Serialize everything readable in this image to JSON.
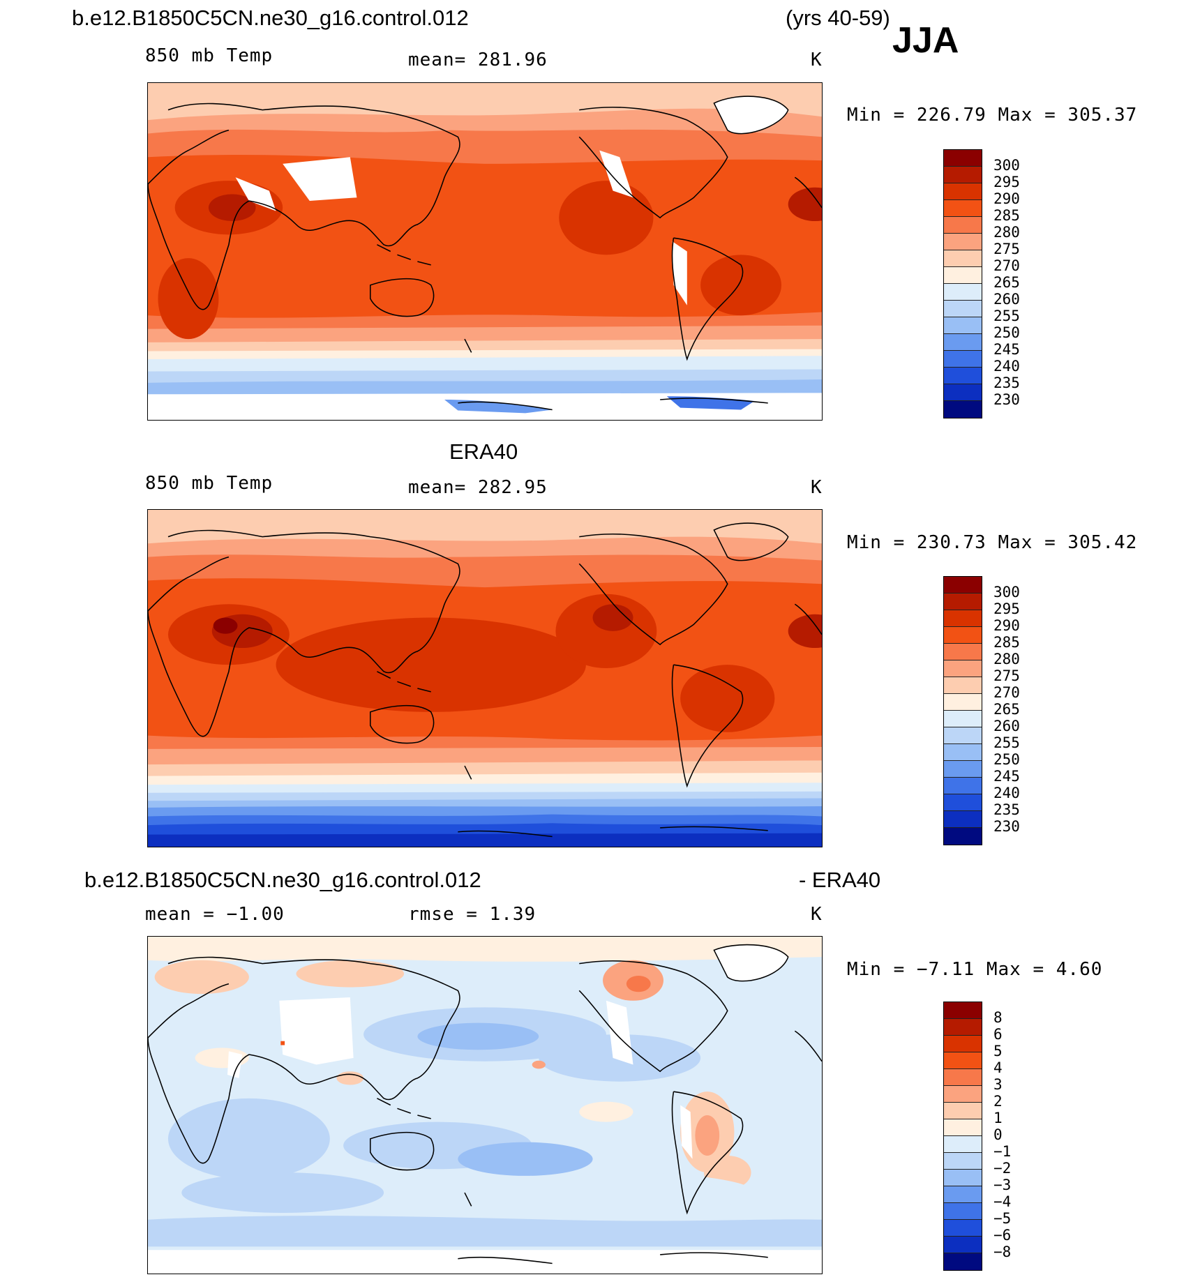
{
  "header": {
    "case_name": "b.e12.B1850C5CN.ne30_g16.control.012",
    "years": "(yrs 40-59)",
    "season": "JJA"
  },
  "panels": [
    {
      "id": "model",
      "left_label": "850 mb Temp",
      "center_label": "mean= 281.96",
      "units": "K",
      "minmax": "Min = 226.79 Max = 305.37"
    },
    {
      "id": "obs",
      "title": "ERA40",
      "left_label": "850 mb Temp",
      "center_label": "mean= 282.95",
      "units": "K",
      "minmax": "Min = 230.73 Max = 305.42"
    },
    {
      "id": "diff",
      "title_left": "b.e12.B1850C5CN.ne30_g16.control.012",
      "title_right": "- ERA40",
      "left_label": "mean =   −1.00",
      "center_label": "rmse =    1.39",
      "units": "K",
      "minmax": "Min =  −7.11 Max =    4.60"
    }
  ],
  "colorbars": {
    "temp": {
      "labels": [
        "300",
        "295",
        "290",
        "285",
        "280",
        "275",
        "270",
        "265",
        "260",
        "255",
        "250",
        "245",
        "240",
        "235",
        "230"
      ],
      "colors": [
        "#8b0000",
        "#b51b00",
        "#d93300",
        "#f25214",
        "#f7784a",
        "#fba37f",
        "#fdcdb0",
        "#fff0e0",
        "#ddedfa",
        "#bcd6f7",
        "#99bff5",
        "#6a9bf0",
        "#3f73e8",
        "#1f4fdb",
        "#0c2fc0",
        "#000a80"
      ]
    },
    "diff": {
      "labels": [
        "8",
        "6",
        "5",
        "4",
        "3",
        "2",
        "1",
        "0",
        "−1",
        "−2",
        "−3",
        "−4",
        "−5",
        "−6",
        "−8"
      ],
      "colors": [
        "#8b0000",
        "#b51b00",
        "#d93300",
        "#f25214",
        "#f7784a",
        "#fba37f",
        "#fdcdb0",
        "#fff0e0",
        "#ddedfa",
        "#bcd6f7",
        "#99bff5",
        "#6a9bf0",
        "#3f73e8",
        "#1f4fdb",
        "#0c2fc0",
        "#000a80"
      ]
    }
  }
}
